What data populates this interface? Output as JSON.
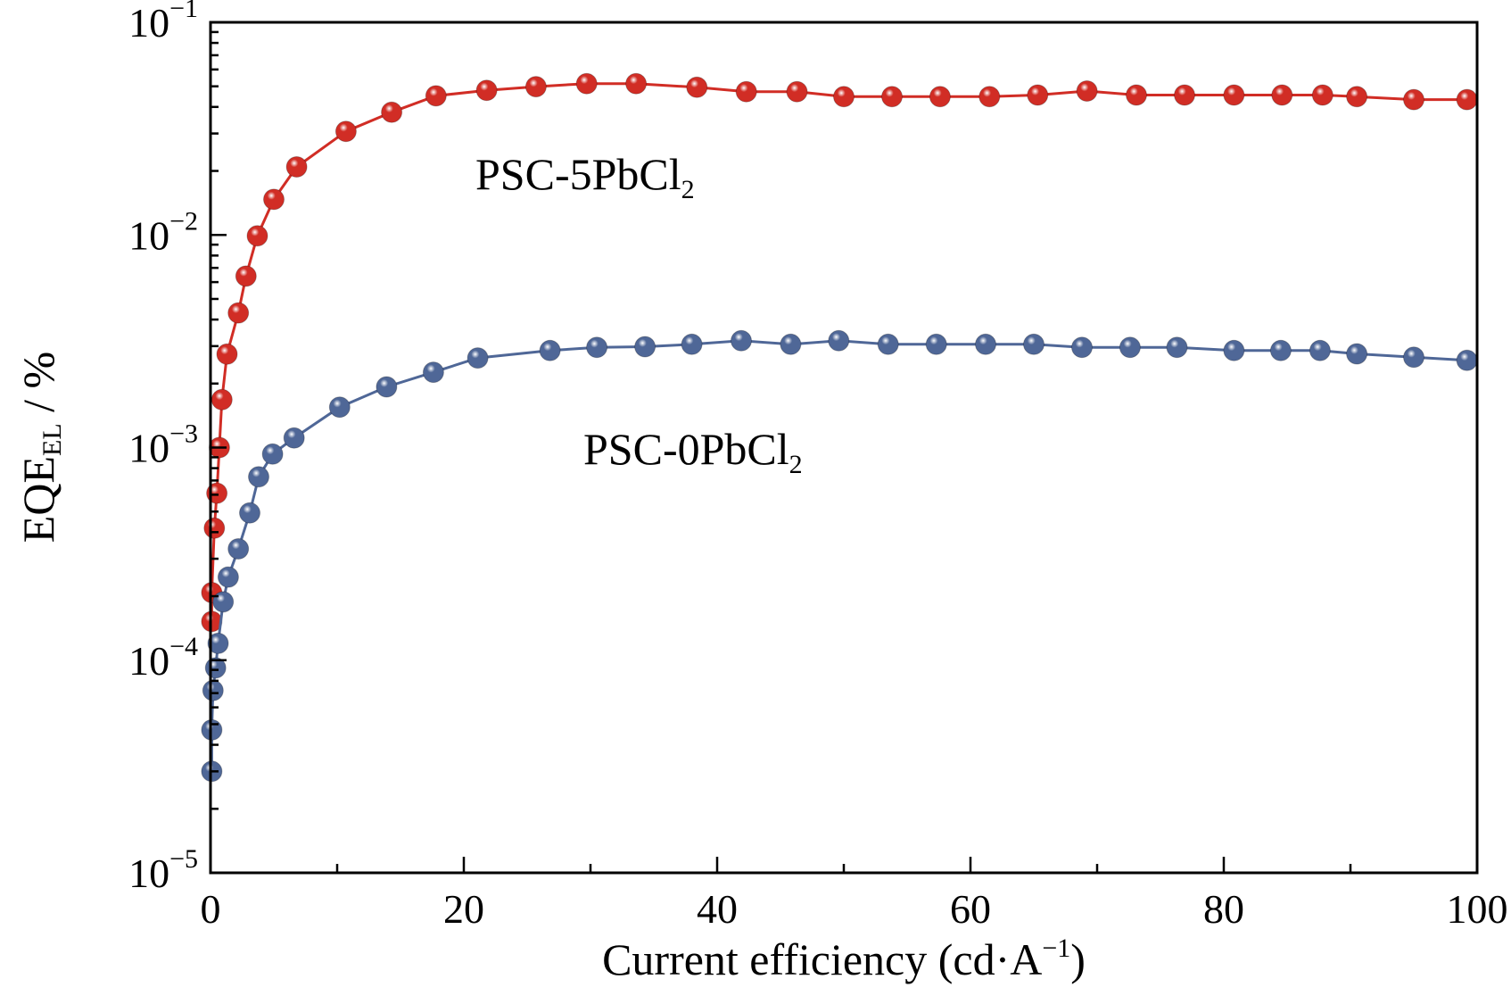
{
  "chart_data": {
    "type": "line",
    "xlabel": "Current efficiency (cd·A",
    "xlabel_sup": "−1",
    "xlabel_end": ")",
    "ylabel": "EQE",
    "ylabel_sub": "EL",
    "ylabel_end": " / %",
    "x_scale": "linear",
    "y_scale": "log",
    "xlim": [
      0,
      100
    ],
    "ylim": [
      1e-05,
      0.1
    ],
    "x_ticks": [
      0,
      20,
      40,
      60,
      80,
      100
    ],
    "x_tick_labels": [
      "0",
      "20",
      "40",
      "60",
      "80",
      "100"
    ],
    "y_ticks": [
      0.1,
      0.01,
      0.001,
      0.0001,
      1e-05
    ],
    "y_tick_base": [
      "10",
      "10",
      "10",
      "10",
      "10"
    ],
    "y_tick_exp": [
      "−1",
      "−2",
      "−3",
      "−4",
      "−5"
    ],
    "grid": false,
    "legend": "none",
    "series": [
      {
        "name": "PSC-5PbCl",
        "name_sub": "2",
        "color": "#d12d25",
        "x": [
          0.1,
          0.1,
          0.3,
          0.5,
          0.7,
          0.9,
          1.3,
          2.2,
          2.8,
          3.7,
          5.0,
          6.8,
          10.7,
          14.3,
          17.8,
          21.8,
          25.7,
          29.7,
          33.6,
          38.4,
          42.3,
          46.3,
          50.0,
          53.8,
          57.6,
          61.5,
          65.3,
          69.2,
          73.1,
          76.9,
          80.8,
          84.6,
          87.8,
          90.5,
          95.0,
          99.2
        ],
        "y": [
          0.000152,
          0.000208,
          0.000418,
          0.00061,
          0.001,
          0.00168,
          0.00275,
          0.0043,
          0.0064,
          0.0099,
          0.0147,
          0.0209,
          0.0307,
          0.0378,
          0.0451,
          0.0479,
          0.0498,
          0.0515,
          0.0515,
          0.0495,
          0.0472,
          0.0472,
          0.0447,
          0.0447,
          0.0447,
          0.0447,
          0.0455,
          0.0475,
          0.0455,
          0.0455,
          0.0455,
          0.0455,
          0.0455,
          0.0447,
          0.0433,
          0.0433
        ]
      },
      {
        "name": "PSC-0PbCl",
        "name_sub": "2",
        "color": "#4f6797",
        "x": [
          0.1,
          0.1,
          0.2,
          0.4,
          0.6,
          1.0,
          1.4,
          2.2,
          3.1,
          3.8,
          4.9,
          6.6,
          10.2,
          13.9,
          17.6,
          21.1,
          26.8,
          30.5,
          34.3,
          38.0,
          41.9,
          45.8,
          49.6,
          53.5,
          57.3,
          61.2,
          65.0,
          68.8,
          72.6,
          76.3,
          80.8,
          84.5,
          87.6,
          90.5,
          95.0,
          99.2
        ],
        "y": [
          3e-05,
          4.7e-05,
          7.2e-05,
          9.2e-05,
          0.00012,
          0.000188,
          0.000246,
          0.000334,
          0.000493,
          0.000728,
          0.000932,
          0.00111,
          0.00155,
          0.00193,
          0.00226,
          0.00264,
          0.00286,
          0.00296,
          0.00298,
          0.00306,
          0.00318,
          0.00306,
          0.00318,
          0.00306,
          0.00306,
          0.00306,
          0.00306,
          0.00296,
          0.00296,
          0.00296,
          0.00286,
          0.00286,
          0.00286,
          0.00276,
          0.00266,
          0.00257
        ]
      }
    ]
  }
}
